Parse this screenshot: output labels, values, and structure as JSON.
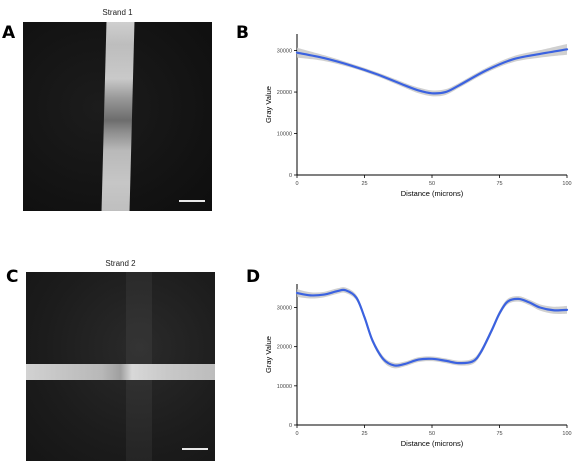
{
  "panels": {
    "A": {
      "letter": "A",
      "title": "Strand 1"
    },
    "B": {
      "letter": "B"
    },
    "C": {
      "letter": "C",
      "title": "Strand 2"
    },
    "D": {
      "letter": "D"
    }
  },
  "chart_data": [
    {
      "type": "line",
      "panel": "B",
      "title": "",
      "xlabel": "Distance (microns)",
      "ylabel": "Gray Value",
      "xlim": [
        0,
        100
      ],
      "ylim": [
        0,
        34000
      ],
      "xticks": [
        0,
        25,
        50,
        75,
        100
      ],
      "yticks": [
        0,
        10000,
        20000,
        30000
      ],
      "grid": false,
      "series": [
        {
          "color": "#3b62e0",
          "band_color": "#c8c8c8",
          "x": [
            0,
            10,
            20,
            30,
            40,
            45,
            50,
            55,
            60,
            70,
            80,
            90,
            100
          ],
          "y": [
            29500,
            28200,
            26400,
            24200,
            21600,
            20400,
            19700,
            20000,
            21600,
            25200,
            27900,
            29200,
            30300
          ],
          "band": [
            1200,
            700,
            500,
            500,
            600,
            700,
            700,
            700,
            600,
            600,
            700,
            900,
            1300
          ]
        }
      ]
    },
    {
      "type": "line",
      "panel": "D",
      "title": "",
      "xlabel": "Distance (microns)",
      "ylabel": "Gray Value",
      "xlim": [
        0,
        100
      ],
      "ylim": [
        0,
        36000
      ],
      "xticks": [
        0,
        25,
        50,
        75,
        100
      ],
      "yticks": [
        0,
        10000,
        20000,
        30000
      ],
      "grid": false,
      "series": [
        {
          "color": "#3b62e0",
          "band_color": "#c8c8c8",
          "x": [
            0,
            5,
            10,
            15,
            18,
            22,
            25,
            28,
            32,
            36,
            40,
            45,
            50,
            55,
            60,
            65,
            68,
            72,
            75,
            78,
            82,
            86,
            90,
            95,
            100
          ],
          "y": [
            33700,
            33100,
            33300,
            34200,
            34400,
            32500,
            27500,
            21500,
            16800,
            15200,
            15600,
            16700,
            16900,
            16400,
            15800,
            16200,
            18500,
            24000,
            28500,
            31500,
            32200,
            31300,
            30000,
            29300,
            29400
          ],
          "band": [
            1000,
            800,
            700,
            700,
            700,
            700,
            700,
            700,
            700,
            700,
            600,
            600,
            600,
            600,
            600,
            700,
            700,
            700,
            700,
            700,
            700,
            700,
            800,
            900,
            1000
          ]
        }
      ]
    }
  ]
}
